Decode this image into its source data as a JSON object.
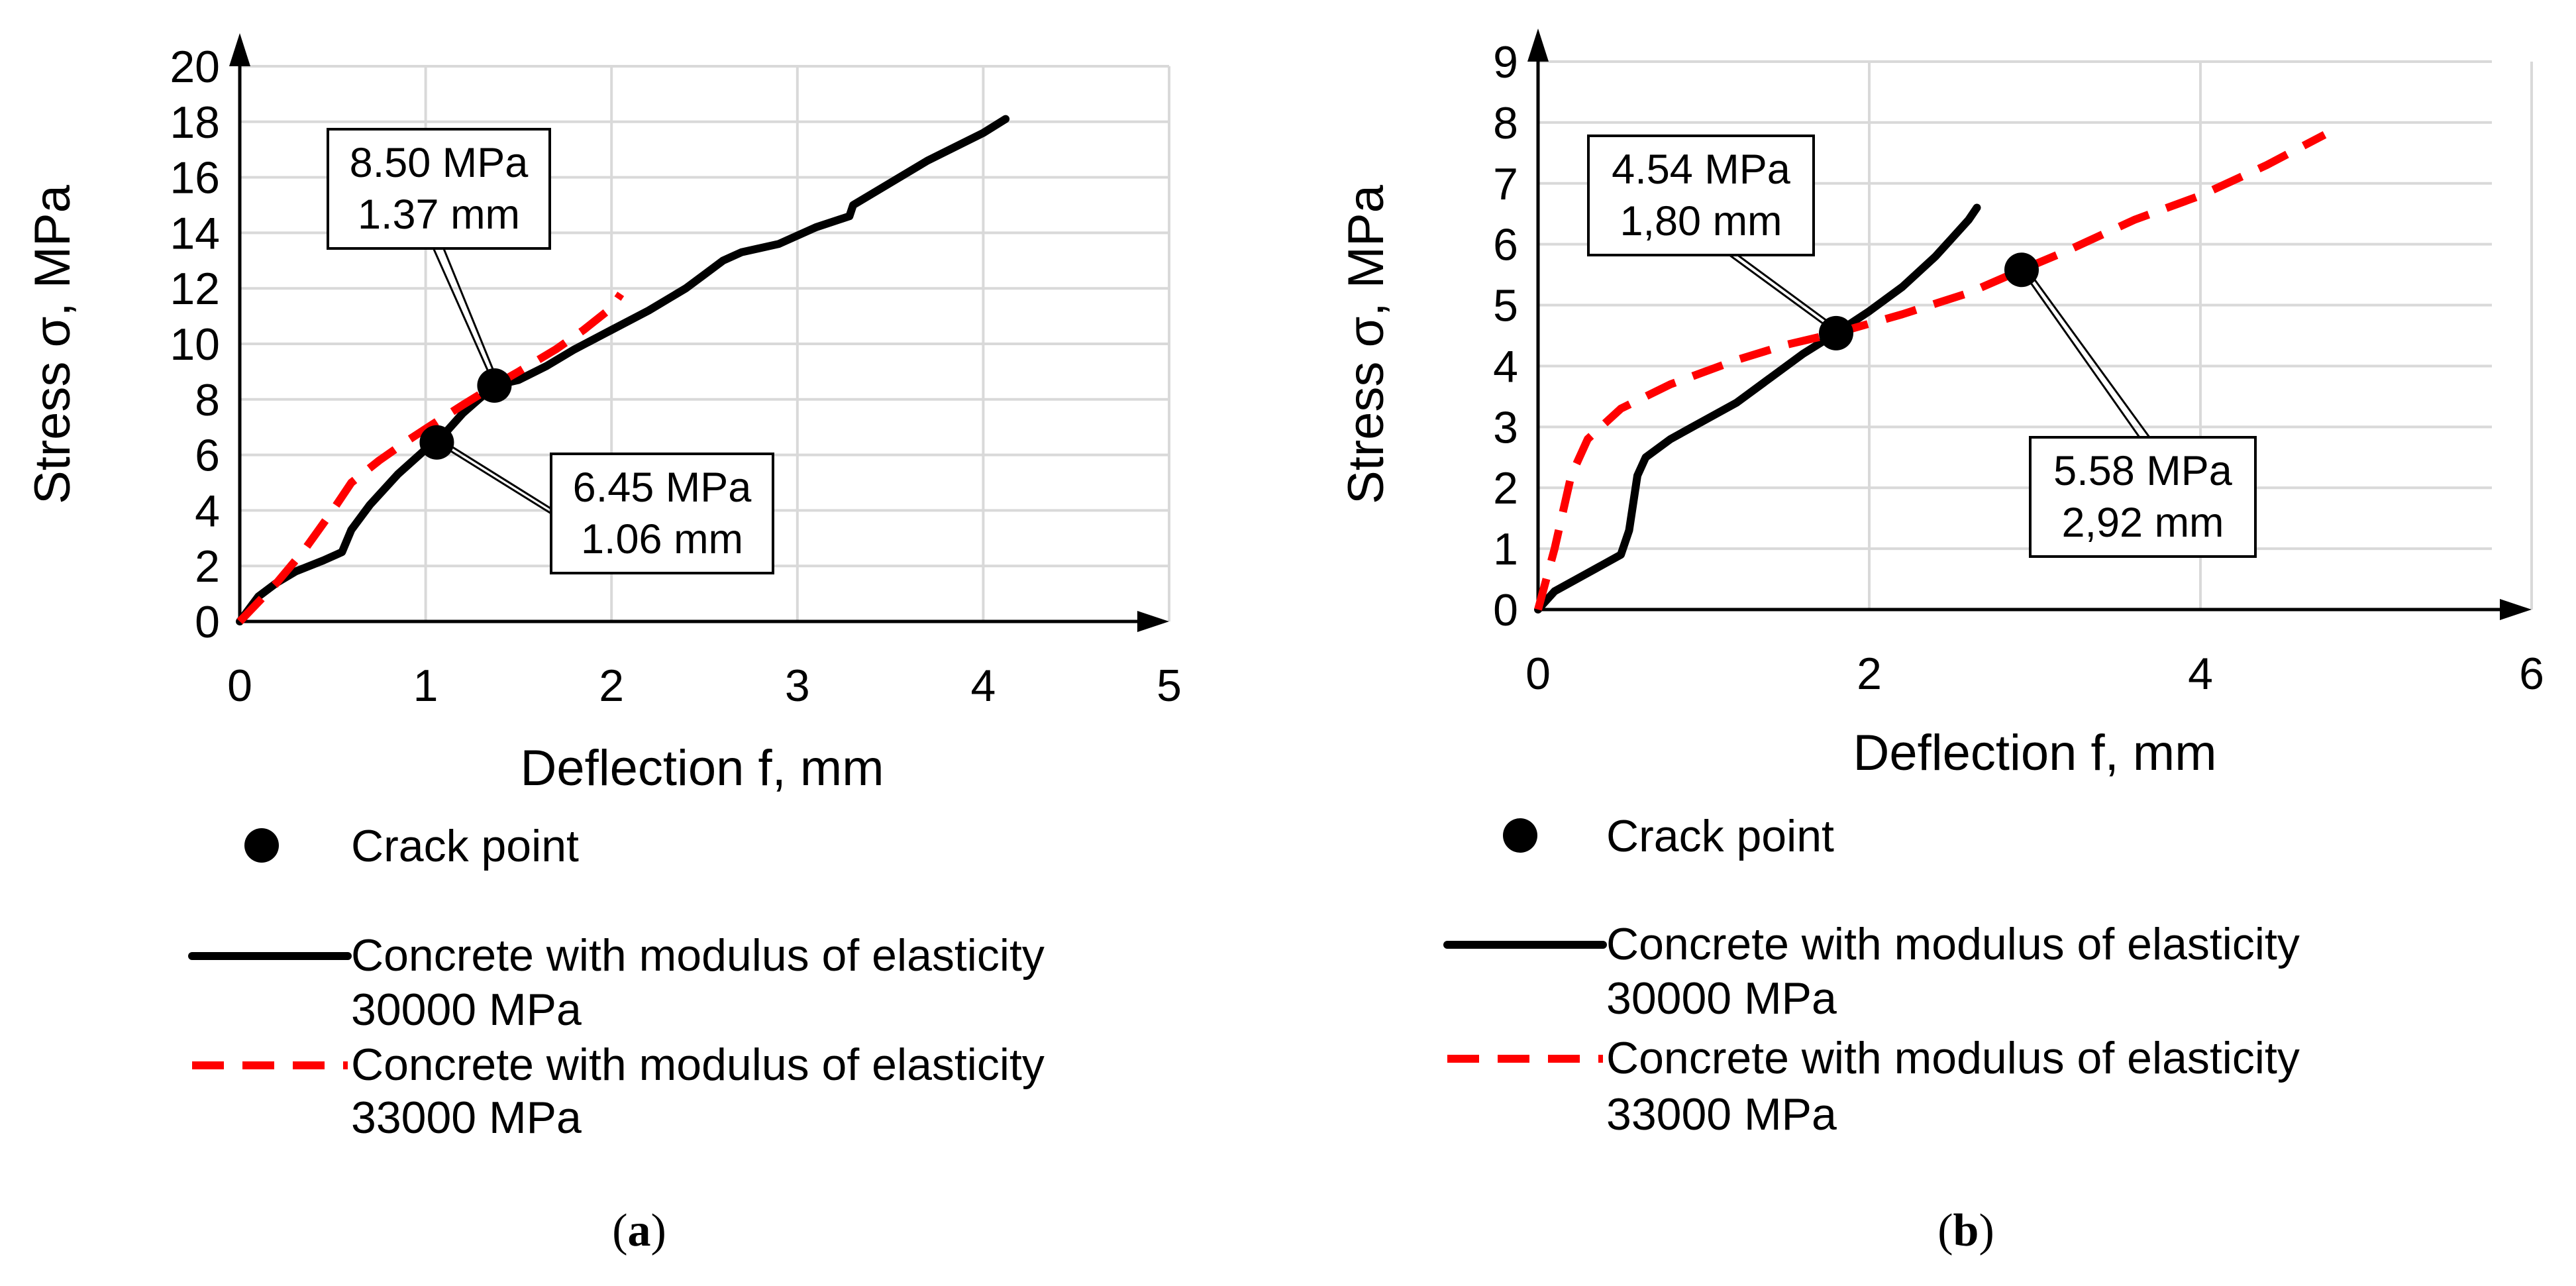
{
  "chart_data": [
    {
      "type": "line",
      "panel_label": "a",
      "xlabel": "Deflection f, mm",
      "ylabel": "Stress σ, MPa",
      "xlim": [
        0,
        5
      ],
      "ylim": [
        0,
        20
      ],
      "xticks": [
        0,
        1,
        2,
        3,
        4,
        5
      ],
      "yticks": [
        0,
        2,
        4,
        6,
        8,
        10,
        12,
        14,
        16,
        18,
        20
      ],
      "grid": true,
      "series": [
        {
          "name": "Concrete with modulus of elasticity 30000 MPa",
          "name_line1": "Concrete with modulus of elasticity",
          "name_line2": "30000 MPa",
          "style": "solid",
          "color": "#000000",
          "x": [
            0,
            0.1,
            0.2,
            0.3,
            0.45,
            0.55,
            0.6,
            0.7,
            0.85,
            1.0,
            1.06,
            1.2,
            1.37,
            1.5,
            1.65,
            1.8,
            2.0,
            2.2,
            2.4,
            2.5,
            2.6,
            2.7,
            2.9,
            3.1,
            3.28,
            3.3,
            3.45,
            3.7,
            4.0,
            4.12
          ],
          "y": [
            0,
            0.9,
            1.4,
            1.8,
            2.2,
            2.5,
            3.3,
            4.2,
            5.3,
            6.2,
            6.45,
            7.5,
            8.5,
            8.7,
            9.2,
            9.8,
            10.5,
            11.2,
            12.0,
            12.5,
            13.0,
            13.3,
            13.6,
            14.2,
            14.6,
            15.0,
            15.6,
            16.6,
            17.6,
            18.1
          ]
        },
        {
          "name": "Concrete with modulus of elasticity 33000 MPa",
          "name_line1": "Concrete with modulus of elasticity",
          "name_line2": "33000 MPa",
          "style": "dashed",
          "color": "#ff0000",
          "x": [
            0,
            0.1,
            0.2,
            0.35,
            0.5,
            0.6,
            0.75,
            0.9,
            1.06,
            1.2,
            1.37,
            1.5,
            1.7,
            1.85,
            2.0,
            2.05
          ],
          "y": [
            0,
            0.7,
            1.4,
            2.6,
            4.0,
            5.0,
            5.8,
            6.5,
            7.2,
            7.8,
            8.5,
            9.0,
            9.8,
            10.5,
            11.3,
            11.8
          ]
        }
      ],
      "crack_points": [
        {
          "x": 1.37,
          "y": 8.5,
          "label_line1": "8.50 MPa",
          "label_line2": "1.37 mm"
        },
        {
          "x": 1.06,
          "y": 6.45,
          "label_line1": "6.45 MPa",
          "label_line2": "1.06 mm"
        }
      ],
      "legend": {
        "position": "bottom",
        "crack_point_label": "Crack point"
      }
    },
    {
      "type": "line",
      "panel_label": "b",
      "xlabel": "Deflection f, mm",
      "ylabel": "Stress σ, MPa",
      "xlim": [
        0,
        6
      ],
      "ylim": [
        0,
        9
      ],
      "xticks": [
        0,
        2,
        4,
        6
      ],
      "yticks": [
        0,
        1,
        2,
        3,
        4,
        5,
        6,
        7,
        8,
        9
      ],
      "grid": true,
      "series": [
        {
          "name": "Concrete with modulus of elasticity 30000 MPa",
          "name_line1": "Concrete with modulus of elasticity",
          "name_line2": "30000 MPa",
          "style": "solid",
          "color": "#000000",
          "x": [
            0,
            0.1,
            0.3,
            0.5,
            0.55,
            0.6,
            0.65,
            0.8,
            1.0,
            1.2,
            1.4,
            1.6,
            1.8,
            2.0,
            2.2,
            2.4,
            2.5,
            2.6,
            2.65
          ],
          "y": [
            0,
            0.3,
            0.6,
            0.9,
            1.3,
            2.2,
            2.5,
            2.8,
            3.1,
            3.4,
            3.8,
            4.2,
            4.54,
            4.9,
            5.3,
            5.8,
            6.1,
            6.4,
            6.6
          ]
        },
        {
          "name": "Concrete with modulus of elasticity 33000 MPa",
          "name_line1": "Concrete with modulus of elasticity",
          "name_line2": "33000 MPa",
          "style": "dashed",
          "color": "#ff0000",
          "x": [
            0,
            0.1,
            0.2,
            0.3,
            0.5,
            0.8,
            1.2,
            1.5,
            1.8,
            2.2,
            2.6,
            2.92,
            3.2,
            3.6,
            4.0,
            4.4,
            4.75
          ],
          "y": [
            0,
            1.0,
            2.2,
            2.8,
            3.3,
            3.7,
            4.1,
            4.35,
            4.54,
            4.85,
            5.2,
            5.58,
            5.9,
            6.4,
            6.8,
            7.3,
            7.8
          ]
        }
      ],
      "crack_points": [
        {
          "x": 1.8,
          "y": 4.54,
          "label_line1": "4.54 MPa",
          "label_line2": "1,80 mm"
        },
        {
          "x": 2.92,
          "y": 5.58,
          "label_line1": "5.58 MPa",
          "label_line2": "2,92 mm"
        }
      ],
      "legend": {
        "position": "bottom",
        "crack_point_label": "Crack point"
      }
    }
  ]
}
